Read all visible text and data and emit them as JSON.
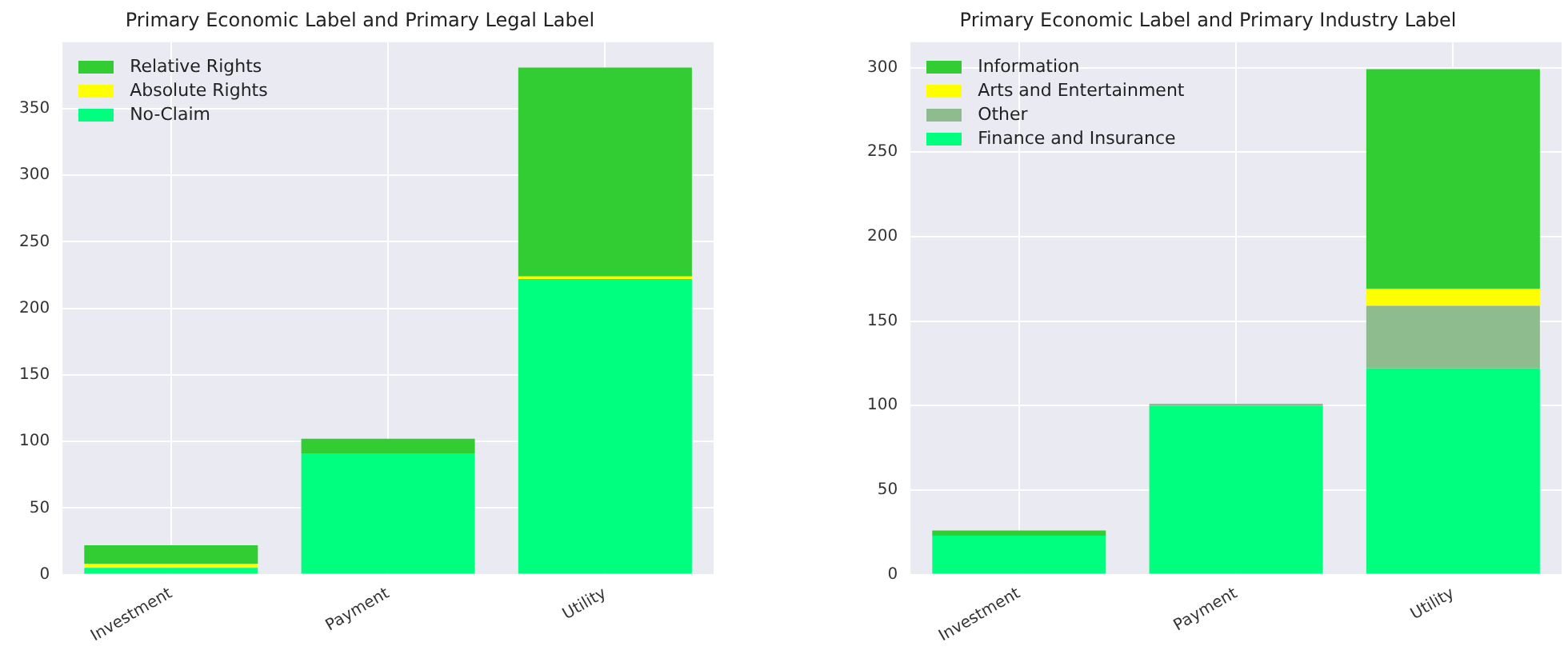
{
  "chart_data": [
    {
      "type": "bar",
      "title": "Primary Economic Label and Primary Legal Label",
      "categories": [
        "Investment",
        "Payment",
        "Utility"
      ],
      "stacked": true,
      "grid": true,
      "legend": "top left",
      "ylim": [
        0,
        400
      ],
      "yticks": [
        0,
        50,
        100,
        150,
        200,
        250,
        300,
        350
      ],
      "series": [
        {
          "name": "No-Claim",
          "color": "#00ff7f",
          "values": [
            5,
            91,
            222
          ]
        },
        {
          "name": "Absolute Rights",
          "color": "#ffff00",
          "values": [
            3,
            0,
            2
          ]
        },
        {
          "name": "Relative Rights",
          "color": "#32cd32",
          "values": [
            14,
            11,
            157
          ]
        }
      ]
    },
    {
      "type": "bar",
      "title": "Primary Economic Label and Primary Industry Label",
      "categories": [
        "Investment",
        "Payment",
        "Utility"
      ],
      "stacked": true,
      "grid": true,
      "legend": "top left",
      "ylim": [
        0,
        315
      ],
      "yticks": [
        0,
        50,
        100,
        150,
        200,
        250,
        300
      ],
      "series": [
        {
          "name": "Finance and Insurance",
          "color": "#00ff7f",
          "values": [
            23,
            100,
            122
          ]
        },
        {
          "name": "Other",
          "color": "#8fbc8f",
          "values": [
            0,
            1,
            37
          ]
        },
        {
          "name": "Arts and Entertainment",
          "color": "#ffff00",
          "values": [
            0,
            0,
            10
          ]
        },
        {
          "name": "Information",
          "color": "#32cd32",
          "values": [
            3,
            0,
            130
          ]
        }
      ]
    }
  ]
}
